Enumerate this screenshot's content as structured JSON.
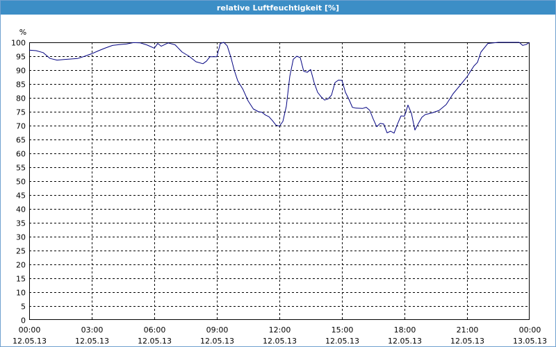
{
  "window": {
    "title": "relative Luftfeuchtigkeit [%]"
  },
  "chart_data": {
    "type": "line",
    "title": "relative Luftfeuchtigkeit [%]",
    "ylabel": "%",
    "xlabel": "",
    "ylim": [
      0,
      100
    ],
    "yticks": [
      0,
      5,
      10,
      15,
      20,
      25,
      30,
      35,
      40,
      45,
      50,
      55,
      60,
      65,
      70,
      75,
      80,
      85,
      90,
      95,
      100
    ],
    "xlim": [
      "12.05.13 00:00",
      "13.05.13 00:00"
    ],
    "xticks": [
      {
        "time": "00:00",
        "date": "12.05.13"
      },
      {
        "time": "03:00",
        "date": "12.05.13"
      },
      {
        "time": "06:00",
        "date": "12.05.13"
      },
      {
        "time": "09:00",
        "date": "12.05.13"
      },
      {
        "time": "12:00",
        "date": "12.05.13"
      },
      {
        "time": "15:00",
        "date": "12.05.13"
      },
      {
        "time": "18:00",
        "date": "12.05.13"
      },
      {
        "time": "21:00",
        "date": "12.05.13"
      },
      {
        "time": "00:00",
        "date": "13.05.13"
      }
    ],
    "grid": true,
    "colors": {
      "line": "#000080",
      "grid": "#000000",
      "title_bar": "#3c8ec6"
    },
    "series": [
      {
        "points": [
          [
            "00:00",
            97.2
          ],
          [
            "00:20",
            97.0
          ],
          [
            "00:40",
            96.3
          ],
          [
            "01:00",
            94.2
          ],
          [
            "01:20",
            93.6
          ],
          [
            "01:40",
            93.8
          ],
          [
            "02:00",
            94.0
          ],
          [
            "02:20",
            94.2
          ],
          [
            "02:40",
            95.0
          ],
          [
            "03:00",
            95.9
          ],
          [
            "03:20",
            97.0
          ],
          [
            "03:40",
            98.0
          ],
          [
            "04:00",
            98.9
          ],
          [
            "04:20",
            99.2
          ],
          [
            "04:40",
            99.4
          ],
          [
            "05:00",
            99.9
          ],
          [
            "05:20",
            99.8
          ],
          [
            "05:40",
            99.0
          ],
          [
            "06:00",
            97.9
          ],
          [
            "06:10",
            99.6
          ],
          [
            "06:20",
            98.6
          ],
          [
            "06:40",
            99.8
          ],
          [
            "07:00",
            99.1
          ],
          [
            "07:20",
            96.5
          ],
          [
            "07:40",
            95.0
          ],
          [
            "08:00",
            93.0
          ],
          [
            "08:20",
            92.3
          ],
          [
            "08:30",
            93.2
          ],
          [
            "08:40",
            94.8
          ],
          [
            "09:00",
            94.8
          ],
          [
            "09:10",
            99.6
          ],
          [
            "09:20",
            100.0
          ],
          [
            "09:30",
            98.7
          ],
          [
            "09:40",
            94.8
          ],
          [
            "09:50",
            90.0
          ],
          [
            "10:00",
            86.2
          ],
          [
            "10:15",
            83.1
          ],
          [
            "10:30",
            78.9
          ],
          [
            "10:45",
            76.0
          ],
          [
            "11:00",
            75.0
          ],
          [
            "11:10",
            74.8
          ],
          [
            "11:20",
            73.8
          ],
          [
            "11:30",
            73.2
          ],
          [
            "11:40",
            71.8
          ],
          [
            "11:50",
            70.2
          ],
          [
            "12:00",
            69.8
          ],
          [
            "12:10",
            71.5
          ],
          [
            "12:20",
            77.0
          ],
          [
            "12:30",
            87.8
          ],
          [
            "12:40",
            93.9
          ],
          [
            "12:50",
            95.0
          ],
          [
            "13:00",
            94.5
          ],
          [
            "13:10",
            89.6
          ],
          [
            "13:20",
            89.2
          ],
          [
            "13:30",
            90.2
          ],
          [
            "13:40",
            85.5
          ],
          [
            "13:50",
            82.0
          ],
          [
            "14:00",
            80.4
          ],
          [
            "14:10",
            79.2
          ],
          [
            "14:20",
            79.6
          ],
          [
            "14:30",
            81.0
          ],
          [
            "14:40",
            85.5
          ],
          [
            "14:50",
            86.4
          ],
          [
            "15:00",
            86.3
          ],
          [
            "15:10",
            82.0
          ],
          [
            "15:20",
            79.5
          ],
          [
            "15:30",
            76.6
          ],
          [
            "15:40",
            76.3
          ],
          [
            "16:00",
            76.2
          ],
          [
            "16:10",
            76.6
          ],
          [
            "16:20",
            75.5
          ],
          [
            "16:30",
            72.4
          ],
          [
            "16:40",
            69.6
          ],
          [
            "16:50",
            70.8
          ],
          [
            "17:00",
            70.6
          ],
          [
            "17:10",
            67.4
          ],
          [
            "17:20",
            68.0
          ],
          [
            "17:30",
            67.3
          ],
          [
            "17:40",
            70.6
          ],
          [
            "17:50",
            73.5
          ],
          [
            "18:00",
            73.4
          ],
          [
            "18:10",
            77.4
          ],
          [
            "18:20",
            74.4
          ],
          [
            "18:30",
            68.4
          ],
          [
            "18:40",
            70.8
          ],
          [
            "18:50",
            73.0
          ],
          [
            "19:00",
            74.0
          ],
          [
            "19:20",
            74.6
          ],
          [
            "19:40",
            75.5
          ],
          [
            "20:00",
            77.6
          ],
          [
            "20:20",
            81.5
          ],
          [
            "20:40",
            84.5
          ],
          [
            "21:00",
            87.6
          ],
          [
            "21:10",
            89.6
          ],
          [
            "21:20",
            91.5
          ],
          [
            "21:30",
            92.8
          ],
          [
            "21:40",
            96.5
          ],
          [
            "22:00",
            99.6
          ],
          [
            "22:30",
            100.0
          ],
          [
            "23:00",
            100.0
          ],
          [
            "23:30",
            100.0
          ],
          [
            "23:40",
            98.9
          ],
          [
            "23:50",
            99.2
          ],
          [
            "24:00",
            100.0
          ]
        ]
      }
    ]
  }
}
